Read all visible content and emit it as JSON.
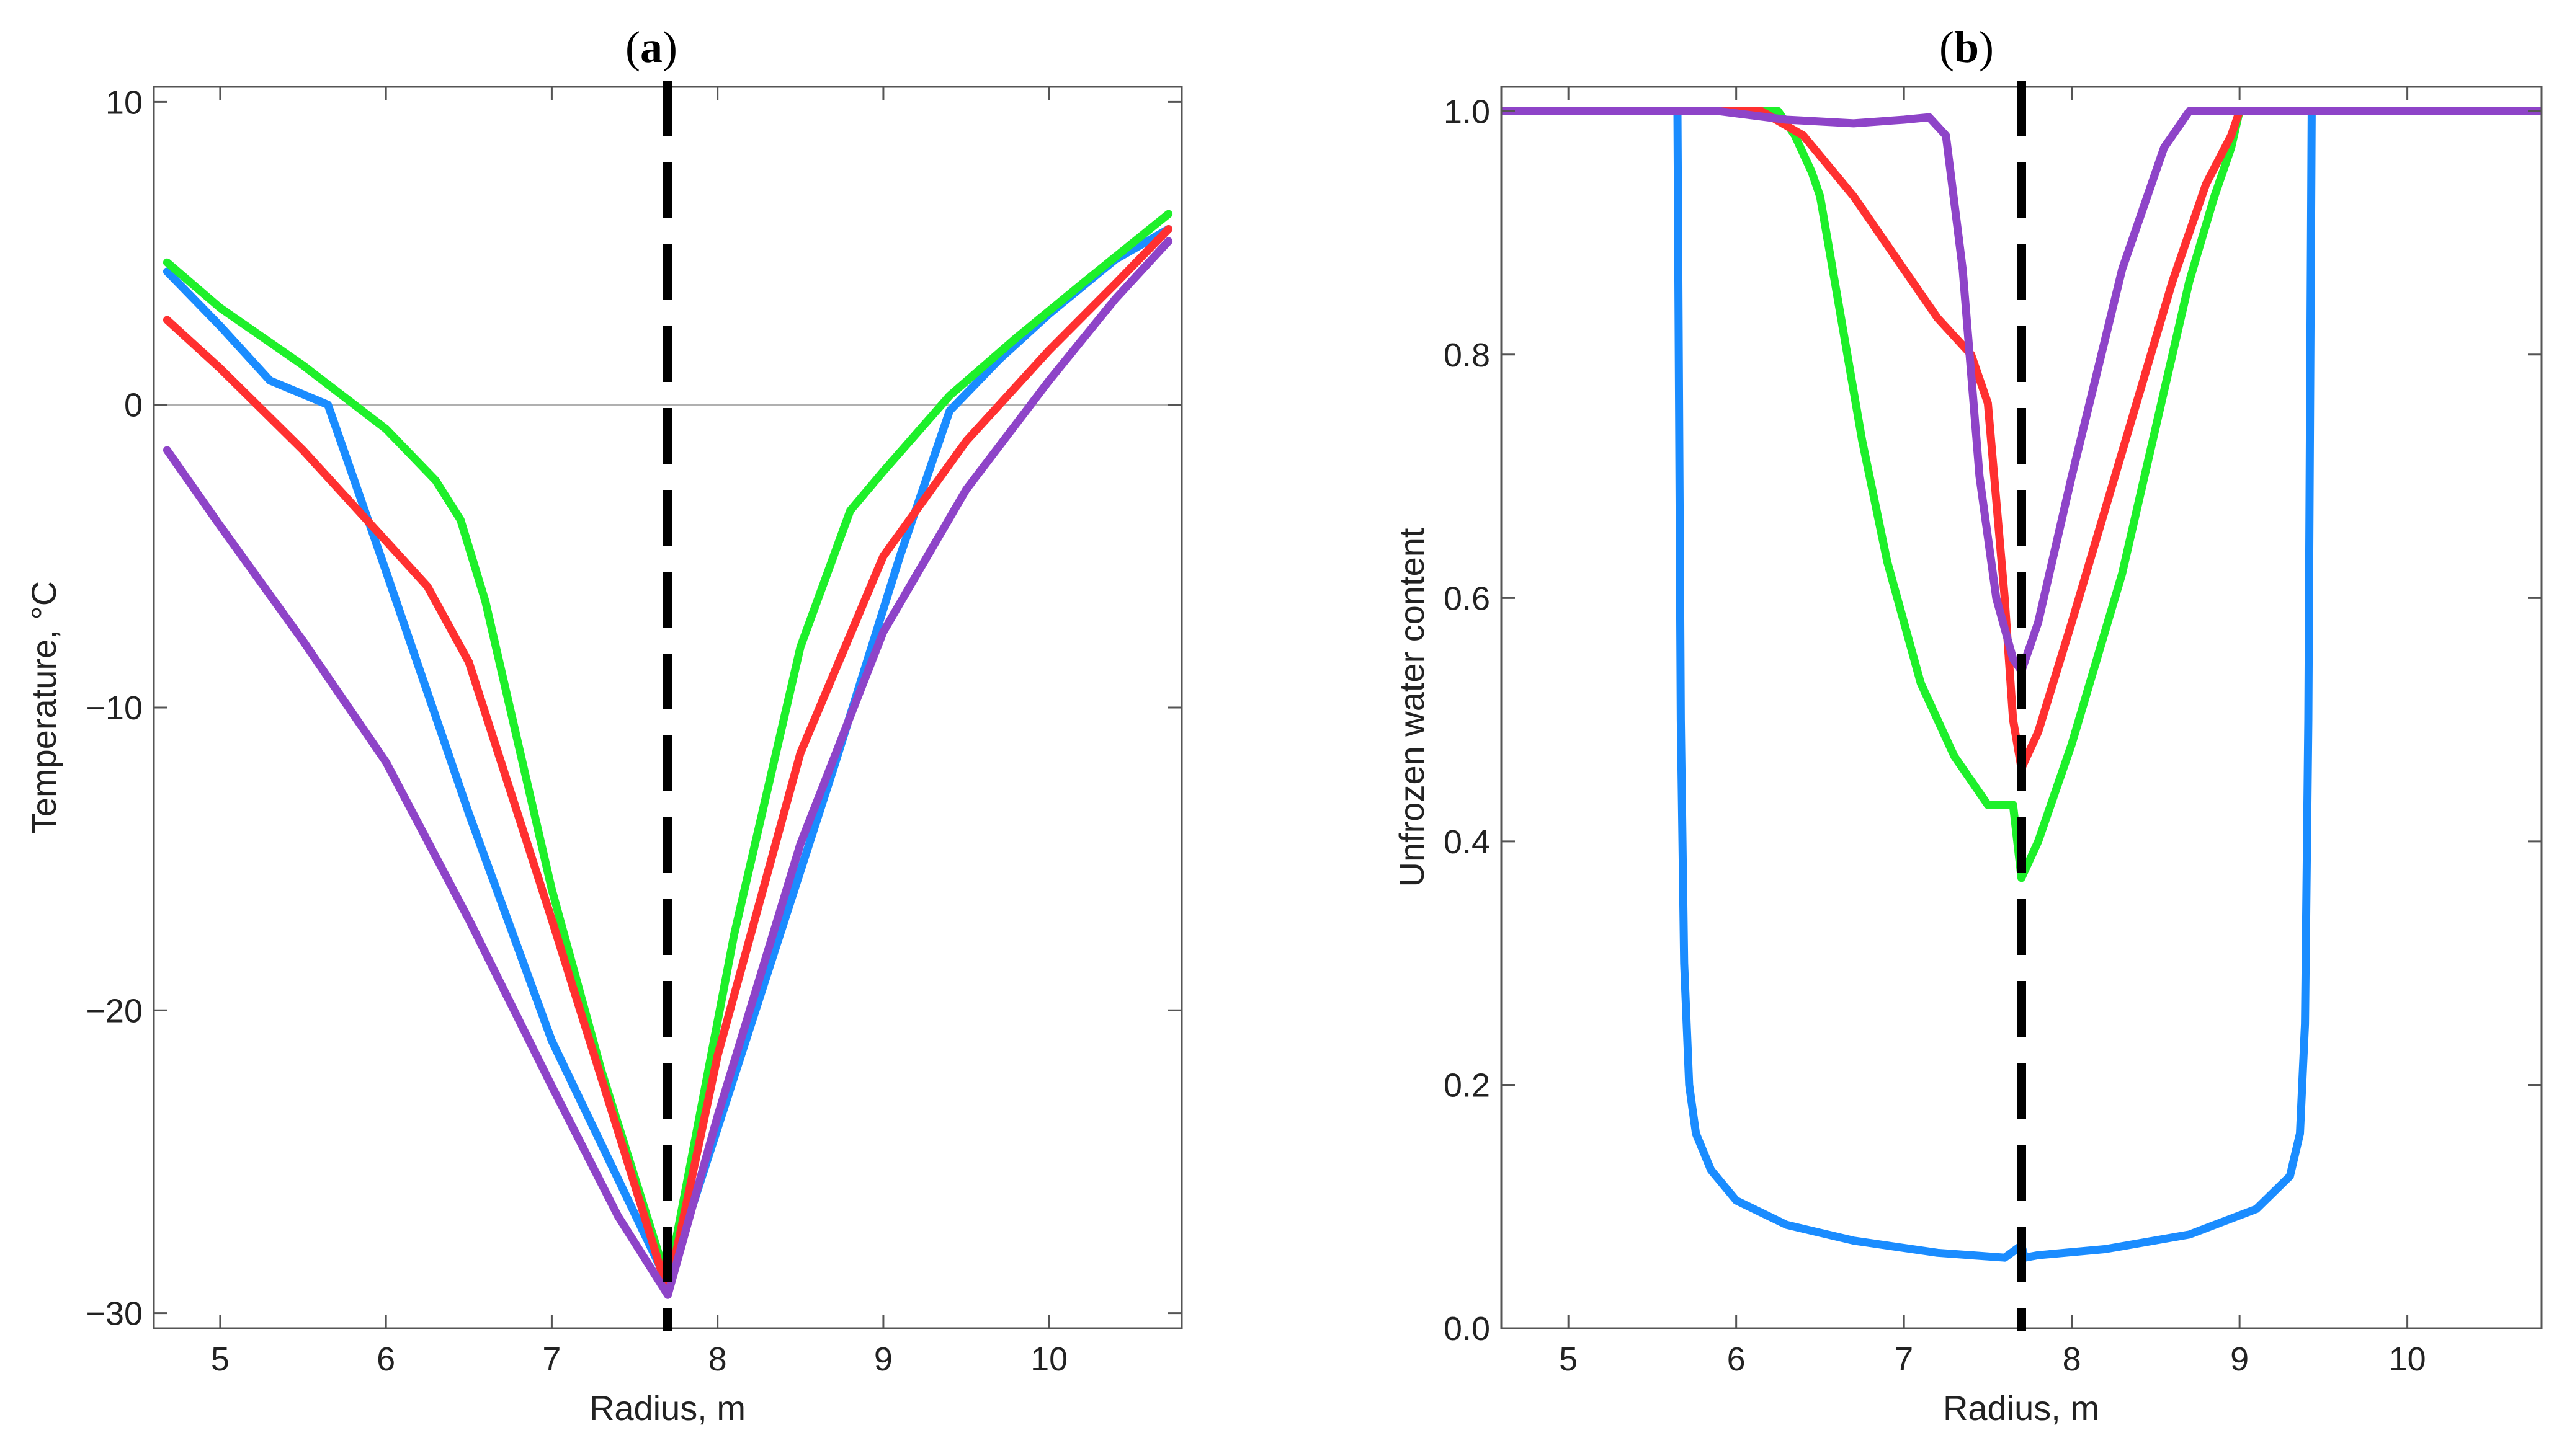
{
  "chart_data": [
    {
      "type": "line",
      "panel_label": "a",
      "title": "(a)",
      "xlabel": "Radius, m",
      "ylabel": "Temperature, °C",
      "xlim": [
        4.6,
        10.8
      ],
      "ylim": [
        -30.5,
        10.5
      ],
      "xticks": [
        5,
        6,
        7,
        8,
        9,
        10
      ],
      "yticks": [
        -30,
        -20,
        -10,
        0,
        10
      ],
      "ytick_labels": [
        "−30",
        "−20",
        "−10",
        "0",
        "10"
      ],
      "zero_line": 0,
      "dashed_vline_x": 7.7,
      "legend": "none",
      "series": [
        {
          "name": "blue",
          "color": "#1a8cff",
          "x": [
            4.68,
            5.0,
            5.3,
            5.65,
            6.0,
            6.5,
            7.0,
            7.7,
            8.2,
            8.7,
            9.1,
            9.4,
            9.7,
            10.0,
            10.4,
            10.72
          ],
          "y": [
            4.4,
            2.6,
            0.8,
            0.0,
            -5.5,
            -13.5,
            -21.0,
            -29.0,
            -20.5,
            -12.0,
            -5.0,
            -0.2,
            1.5,
            3.0,
            4.8,
            5.8
          ]
        },
        {
          "name": "green",
          "color": "#1ef02a",
          "x": [
            4.68,
            5.0,
            5.5,
            6.0,
            6.3,
            6.45,
            6.6,
            7.0,
            7.3,
            7.7,
            8.1,
            8.5,
            8.8,
            9.0,
            9.4,
            9.8,
            10.2,
            10.72
          ],
          "y": [
            4.7,
            3.2,
            1.3,
            -0.8,
            -2.5,
            -3.8,
            -6.5,
            -16.0,
            -22.0,
            -29.0,
            -17.5,
            -8.0,
            -3.5,
            -2.2,
            0.3,
            2.2,
            4.0,
            6.3
          ]
        },
        {
          "name": "red",
          "color": "#ff3030",
          "x": [
            4.68,
            5.0,
            5.5,
            6.0,
            6.25,
            6.5,
            7.0,
            7.4,
            7.7,
            8.0,
            8.5,
            9.0,
            9.5,
            10.0,
            10.4,
            10.72
          ],
          "y": [
            2.8,
            1.2,
            -1.5,
            -4.5,
            -6.0,
            -8.5,
            -17.0,
            -24.0,
            -29.3,
            -21.5,
            -11.5,
            -5.0,
            -1.2,
            1.8,
            4.0,
            5.8
          ]
        },
        {
          "name": "purple",
          "color": "#8e44c8",
          "x": [
            4.68,
            5.0,
            5.5,
            6.0,
            6.5,
            7.0,
            7.4,
            7.7,
            8.0,
            8.5,
            9.0,
            9.5,
            10.0,
            10.4,
            10.72
          ],
          "y": [
            -1.5,
            -4.0,
            -7.8,
            -11.8,
            -17.0,
            -22.5,
            -26.8,
            -29.4,
            -23.5,
            -14.5,
            -7.5,
            -2.8,
            0.8,
            3.5,
            5.4
          ]
        }
      ]
    },
    {
      "type": "line",
      "panel_label": "b",
      "title": "(b)",
      "xlabel": "Radius, m",
      "ylabel": "Unfrozen water content",
      "xlim": [
        4.6,
        10.8
      ],
      "ylim": [
        0.0,
        1.02
      ],
      "xticks": [
        5,
        6,
        7,
        8,
        9,
        10
      ],
      "yticks": [
        0.0,
        0.2,
        0.4,
        0.6,
        0.8,
        1.0
      ],
      "ytick_labels": [
        "0.0",
        "0.2",
        "0.4",
        "0.6",
        "0.8",
        "1.0"
      ],
      "dashed_vline_x": 7.7,
      "legend": "none",
      "series": [
        {
          "name": "blue",
          "color": "#1a8cff",
          "x": [
            4.6,
            5.65,
            5.67,
            5.69,
            5.72,
            5.76,
            5.85,
            6.0,
            6.3,
            6.7,
            7.2,
            7.6,
            7.7,
            7.72,
            7.8,
            8.2,
            8.7,
            9.1,
            9.3,
            9.36,
            9.39,
            9.41,
            9.43,
            10.8
          ],
          "y": [
            1.0,
            1.0,
            0.5,
            0.3,
            0.2,
            0.16,
            0.13,
            0.105,
            0.085,
            0.072,
            0.062,
            0.058,
            0.068,
            0.058,
            0.06,
            0.065,
            0.077,
            0.098,
            0.125,
            0.16,
            0.25,
            0.5,
            1.0,
            1.0
          ]
        },
        {
          "name": "green",
          "color": "#1ef02a",
          "x": [
            4.6,
            6.25,
            6.35,
            6.45,
            6.5,
            6.6,
            6.75,
            6.9,
            7.1,
            7.3,
            7.5,
            7.65,
            7.7,
            7.8,
            8.0,
            8.3,
            8.55,
            8.7,
            8.85,
            8.95,
            9.0,
            10.8
          ],
          "y": [
            1.0,
            1.0,
            0.98,
            0.95,
            0.93,
            0.85,
            0.73,
            0.63,
            0.53,
            0.47,
            0.43,
            0.43,
            0.37,
            0.4,
            0.48,
            0.62,
            0.77,
            0.86,
            0.93,
            0.97,
            1.0,
            1.0
          ]
        },
        {
          "name": "red",
          "color": "#ff3030",
          "x": [
            4.6,
            6.15,
            6.4,
            6.7,
            7.0,
            7.2,
            7.4,
            7.5,
            7.6,
            7.65,
            7.7,
            7.8,
            8.0,
            8.3,
            8.6,
            8.8,
            8.95,
            9.0,
            10.8
          ],
          "y": [
            1.0,
            1.0,
            0.98,
            0.93,
            0.87,
            0.83,
            0.8,
            0.76,
            0.6,
            0.5,
            0.46,
            0.49,
            0.58,
            0.72,
            0.86,
            0.94,
            0.98,
            1.0,
            1.0
          ]
        },
        {
          "name": "purple",
          "color": "#8e44c8",
          "x": [
            4.6,
            5.9,
            6.3,
            6.7,
            7.0,
            7.15,
            7.25,
            7.35,
            7.45,
            7.55,
            7.65,
            7.7,
            7.8,
            8.0,
            8.3,
            8.55,
            8.7,
            10.8
          ],
          "y": [
            1.0,
            1.0,
            0.993,
            0.99,
            0.993,
            0.995,
            0.98,
            0.87,
            0.7,
            0.6,
            0.55,
            0.54,
            0.58,
            0.7,
            0.87,
            0.97,
            1.0,
            1.0
          ]
        }
      ]
    }
  ]
}
